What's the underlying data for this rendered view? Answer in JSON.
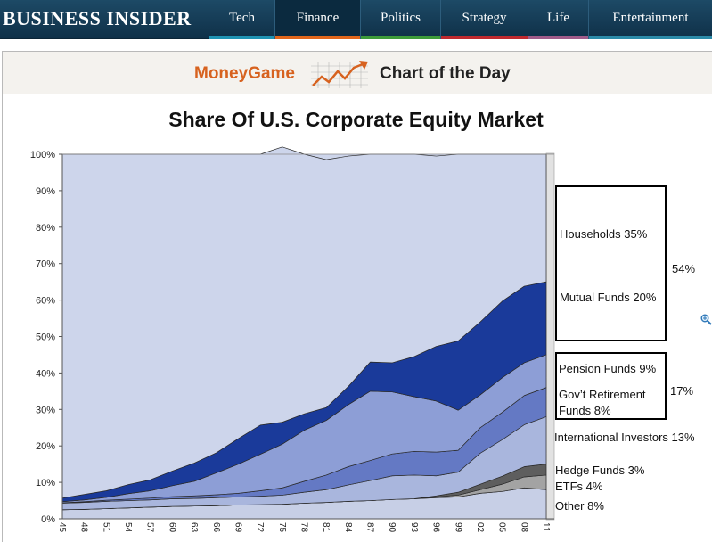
{
  "nav": {
    "brand": "BUSINESS INSIDER",
    "tabs": [
      {
        "label": "Tech",
        "color": "#1f93b3"
      },
      {
        "label": "Finance",
        "color": "#e2661b"
      },
      {
        "label": "Politics",
        "color": "#3d9b3a"
      },
      {
        "label": "Strategy",
        "color": "#c0292f"
      },
      {
        "label": "Life",
        "color": "#a15b8a"
      },
      {
        "label": "Entertainment",
        "color": "#2b8aa8"
      }
    ],
    "active_tab": "Finance"
  },
  "banner": {
    "moneygame": "MoneyGame",
    "chart_of_the_day": "Chart of the Day"
  },
  "chart_data": {
    "type": "area",
    "stacked": true,
    "title": "Share Of U.S. Corporate Equity Market",
    "ylim": [
      0,
      100
    ],
    "yticks": [
      "0%",
      "10%",
      "20%",
      "30%",
      "40%",
      "50%",
      "60%",
      "70%",
      "80%",
      "90%",
      "100%"
    ],
    "x": [
      1945,
      1948,
      1951,
      1954,
      1957,
      1960,
      1963,
      1966,
      1969,
      1972,
      1975,
      1978,
      1981,
      1984,
      1987,
      1990,
      1993,
      1996,
      1999,
      2002,
      2005,
      2008,
      2011
    ],
    "xticks": [
      "45",
      "48",
      "51",
      "54",
      "57",
      "60",
      "63",
      "66",
      "69",
      "72",
      "75",
      "78",
      "81",
      "84",
      "87",
      "90",
      "93",
      "96",
      "99",
      "02",
      "05",
      "08",
      "11"
    ],
    "series": [
      {
        "name": "Other 8%",
        "color": "#c7cfe6",
        "values": [
          2.5,
          2.6,
          2.8,
          3.0,
          3.2,
          3.4,
          3.5,
          3.6,
          3.8,
          3.9,
          4.0,
          4.3,
          4.5,
          4.8,
          5.0,
          5.3,
          5.5,
          5.8,
          6.0,
          7.0,
          7.5,
          8.5,
          8.0
        ]
      },
      {
        "name": "ETFs 4%",
        "color": "#a3a3a3",
        "values": [
          0,
          0,
          0,
          0,
          0,
          0,
          0,
          0,
          0,
          0,
          0,
          0,
          0,
          0,
          0,
          0,
          0,
          0.2,
          0.5,
          1.0,
          2.0,
          3.0,
          4.0
        ]
      },
      {
        "name": "Hedge Funds 3%",
        "color": "#5e5e5e",
        "values": [
          0,
          0,
          0,
          0,
          0,
          0,
          0,
          0,
          0,
          0,
          0,
          0,
          0,
          0,
          0,
          0,
          0,
          0.3,
          0.8,
          1.5,
          2.2,
          2.8,
          3.0
        ]
      },
      {
        "name": "International Investors 13%",
        "color": "#a9b6dd",
        "values": [
          1.8,
          1.9,
          2.0,
          2.0,
          2.0,
          2.1,
          2.1,
          2.2,
          2.2,
          2.3,
          2.5,
          3.0,
          3.5,
          4.5,
          5.5,
          6.5,
          6.5,
          5.5,
          5.5,
          8.5,
          10.0,
          11.5,
          13.0
        ]
      },
      {
        "name": "Gov't Retirement Funds 8%",
        "color": "#6479c4",
        "values": [
          0.1,
          0.2,
          0.3,
          0.4,
          0.5,
          0.6,
          0.7,
          0.8,
          1.0,
          1.5,
          2.0,
          3.0,
          4.0,
          5.0,
          5.5,
          6.0,
          6.5,
          6.5,
          6.0,
          7.0,
          7.5,
          8.0,
          8.0
        ]
      },
      {
        "name": "Pension Funds 9%",
        "color": "#8d9ed6",
        "values": [
          0.3,
          0.5,
          0.8,
          1.5,
          2.0,
          3.0,
          4.0,
          6.0,
          8.0,
          10.0,
          12.0,
          14.0,
          15.0,
          17.0,
          19.0,
          17.0,
          15.0,
          14.0,
          11.0,
          9.0,
          9.5,
          9.0,
          9.0
        ]
      },
      {
        "name": "Mutual Funds 20%",
        "color": "#1a3a9a",
        "values": [
          1.0,
          1.5,
          1.8,
          2.5,
          3.0,
          4.0,
          5.0,
          5.5,
          7.0,
          8.0,
          6.0,
          4.5,
          3.5,
          5.0,
          8.0,
          8.0,
          11.0,
          15.0,
          19.0,
          20.0,
          21.0,
          21.0,
          20.0
        ]
      },
      {
        "name": "Households 35%",
        "color": "#cdd5eb",
        "values": [
          94.3,
          93.3,
          92.3,
          90.6,
          89.3,
          86.9,
          84.7,
          81.9,
          78.0,
          74.3,
          75.5,
          71.2,
          68.0,
          63.2,
          57.0,
          57.2,
          55.5,
          52.2,
          51.2,
          46.0,
          40.3,
          36.2,
          35.0
        ]
      }
    ],
    "legend": [
      "Households 35%",
      "Mutual Funds 20%",
      "54%",
      "Pension Funds 9%",
      "Gov’t Retirement",
      "Funds 8%",
      "17%",
      "International Investors 13%",
      "Hedge Funds 3%",
      "ETFs 4%",
      "Other 8%"
    ]
  }
}
